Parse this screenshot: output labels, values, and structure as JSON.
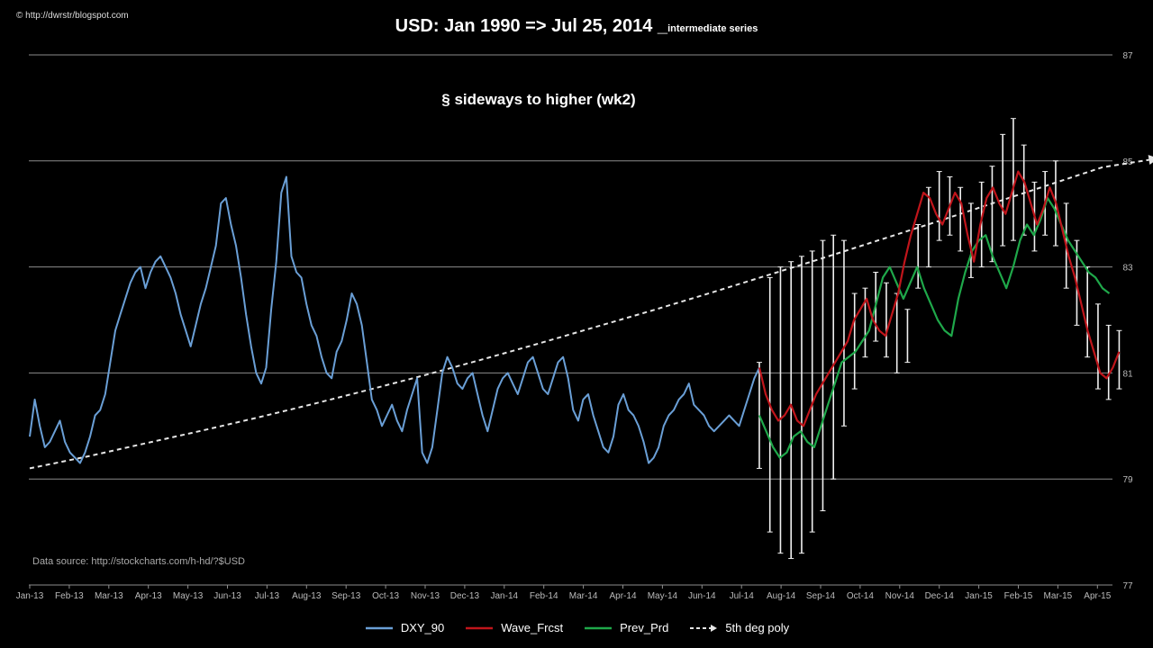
{
  "header": {
    "credit": "© http://dwrstr/blogspot.com",
    "title_main": "USD: Jan 1990 => Jul 25, 2014 _",
    "title_sub": "intermediate series",
    "annotation": "§ sideways to higher (wk2)",
    "source": "Data source: http://stockcharts.com/h-hd/?$USD"
  },
  "colors": {
    "background": "#000000",
    "dxy": "#6a9fd6",
    "wave": "#c0151b",
    "prev": "#1fa84a",
    "poly": "#e6e6e6",
    "errorbar": "#f0f0f0",
    "grid": "#8c8c8c"
  },
  "chart_data": {
    "type": "line",
    "title": "USD: Jan 1990 => Jul 25, 2014 _intermediate series",
    "xlabel": "",
    "ylabel": "",
    "y_axis_side": "right",
    "ylim": [
      77,
      87
    ],
    "yticks": [
      77,
      79,
      81,
      83,
      85,
      87
    ],
    "grid": true,
    "legend_position": "bottom",
    "x_ticks": [
      "Jan-13",
      "Feb-13",
      "Mar-13",
      "Apr-13",
      "May-13",
      "Jun-13",
      "Jul-13",
      "Aug-13",
      "Sep-13",
      "Oct-13",
      "Nov-13",
      "Dec-13",
      "Jan-14",
      "Feb-14",
      "Mar-14",
      "Apr-14",
      "May-14",
      "Jun-14",
      "Jul-14",
      "Aug-14",
      "Sep-14",
      "Oct-14",
      "Nov-14",
      "Dec-14",
      "Jan-15",
      "Feb-15",
      "Mar-15",
      "Apr-15"
    ],
    "annotations": [
      "§ sideways to higher (wk2)",
      "Data source: http://stockcharts.com/h-hd/?$USD"
    ],
    "series": [
      {
        "name": "DXY_90",
        "type": "line",
        "x_start_tick": 0,
        "x_end_tick": 18.45,
        "values": [
          79.8,
          80.5,
          80.0,
          79.6,
          79.7,
          79.9,
          80.1,
          79.7,
          79.5,
          79.4,
          79.3,
          79.5,
          79.8,
          80.2,
          80.3,
          80.6,
          81.2,
          81.8,
          82.1,
          82.4,
          82.7,
          82.9,
          83.0,
          82.6,
          82.9,
          83.1,
          83.2,
          83.0,
          82.8,
          82.5,
          82.1,
          81.8,
          81.5,
          81.9,
          82.3,
          82.6,
          83.0,
          83.4,
          84.2,
          84.3,
          83.8,
          83.4,
          82.8,
          82.1,
          81.5,
          81.0,
          80.8,
          81.1,
          82.2,
          83.1,
          84.4,
          84.7,
          83.2,
          82.9,
          82.8,
          82.3,
          81.9,
          81.7,
          81.3,
          81.0,
          80.9,
          81.4,
          81.6,
          82.0,
          82.5,
          82.3,
          81.9,
          81.2,
          80.5,
          80.3,
          80.0,
          80.2,
          80.4,
          80.1,
          79.9,
          80.3,
          80.6,
          80.9,
          79.5,
          79.3,
          79.6,
          80.3,
          81.0,
          81.3,
          81.1,
          80.8,
          80.7,
          80.9,
          81.0,
          80.6,
          80.2,
          79.9,
          80.3,
          80.7,
          80.9,
          81.0,
          80.8,
          80.6,
          80.9,
          81.2,
          81.3,
          81.0,
          80.7,
          80.6,
          80.9,
          81.2,
          81.3,
          80.9,
          80.3,
          80.1,
          80.5,
          80.6,
          80.2,
          79.9,
          79.6,
          79.5,
          79.8,
          80.4,
          80.6,
          80.3,
          80.2,
          80.0,
          79.7,
          79.3,
          79.4,
          79.6,
          80.0,
          80.2,
          80.3,
          80.5,
          80.6,
          80.8,
          80.4,
          80.3,
          80.2,
          80.0,
          79.9,
          80.0,
          80.1,
          80.2,
          80.1,
          80.0,
          80.3,
          80.6,
          80.9,
          81.1
        ]
      },
      {
        "name": "Wave_Frcst",
        "type": "line",
        "x_start_tick": 18.45,
        "x_end_tick": 27.55,
        "values": [
          81.1,
          80.6,
          80.3,
          80.1,
          80.2,
          80.4,
          80.1,
          80.0,
          80.3,
          80.6,
          80.8,
          81.0,
          81.2,
          81.4,
          81.6,
          82.0,
          82.2,
          82.4,
          82.0,
          81.8,
          81.7,
          82.1,
          82.5,
          83.1,
          83.6,
          84.0,
          84.4,
          84.3,
          84.0,
          83.8,
          84.1,
          84.4,
          84.2,
          83.6,
          83.1,
          83.8,
          84.3,
          84.5,
          84.2,
          84.0,
          84.4,
          84.8,
          84.6,
          84.2,
          83.8,
          84.1,
          84.5,
          84.2,
          83.7,
          83.2,
          82.8,
          82.3,
          81.8,
          81.4,
          81.0,
          80.9,
          81.1,
          81.4
        ]
      },
      {
        "name": "Prev_Prd",
        "type": "line",
        "x_start_tick": 18.45,
        "x_end_tick": 27.3,
        "values": [
          80.2,
          79.9,
          79.6,
          79.4,
          79.5,
          79.8,
          79.9,
          79.7,
          79.6,
          80.0,
          80.4,
          80.8,
          81.2,
          81.3,
          81.4,
          81.6,
          81.8,
          82.3,
          82.8,
          83.0,
          82.7,
          82.4,
          82.7,
          83.0,
          82.6,
          82.3,
          82.0,
          81.8,
          81.7,
          82.4,
          82.9,
          83.3,
          83.5,
          83.6,
          83.2,
          82.9,
          82.6,
          83.0,
          83.5,
          83.8,
          83.6,
          83.9,
          84.3,
          84.1,
          83.8,
          83.5,
          83.3,
          83.1,
          82.9,
          82.8,
          82.6,
          82.5
        ]
      },
      {
        "name": "5th deg poly",
        "type": "trend",
        "x_start_tick": 0,
        "x_end_tick": 28.55,
        "values": [
          79.2,
          79.42,
          79.66,
          79.9,
          80.15,
          80.41,
          80.68,
          80.96,
          81.25,
          81.55,
          81.86,
          82.17,
          82.49,
          82.82,
          83.15,
          83.49,
          83.83,
          84.18,
          84.53,
          84.88,
          85.05
        ]
      }
    ],
    "error_bars": {
      "series": "Wave_Frcst",
      "x_start_tick": 18.45,
      "x_end_tick": 27.55,
      "lower": [
        79.2,
        78.0,
        77.6,
        77.5,
        77.6,
        78.0,
        78.4,
        79.0,
        80.0,
        80.7,
        81.3,
        81.6,
        81.3,
        81.0,
        81.2,
        82.6,
        83.0,
        83.5,
        83.6,
        83.3,
        82.8,
        83.0,
        83.1,
        83.4,
        83.5,
        83.6,
        83.3,
        83.6,
        83.4,
        82.6,
        81.9,
        81.3,
        80.7,
        80.5,
        80.7
      ],
      "upper": [
        81.2,
        82.8,
        83.0,
        83.1,
        83.2,
        83.3,
        83.5,
        83.6,
        83.5,
        82.5,
        82.6,
        82.9,
        82.7,
        82.5,
        82.2,
        83.8,
        84.5,
        84.8,
        84.7,
        84.5,
        84.2,
        84.6,
        84.9,
        85.5,
        85.8,
        85.3,
        84.6,
        84.8,
        85.0,
        84.2,
        83.5,
        83.0,
        82.3,
        81.9,
        81.8
      ]
    }
  }
}
